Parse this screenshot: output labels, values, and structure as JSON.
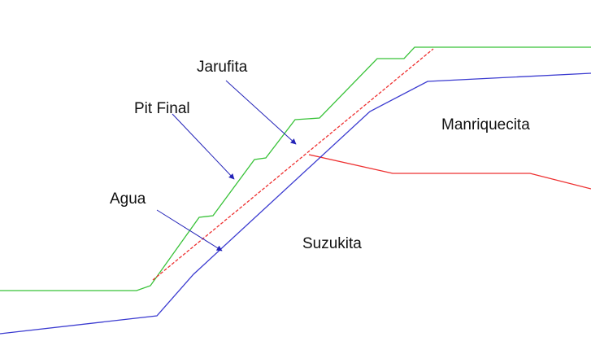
{
  "labels": {
    "jarufita": "Jarufita",
    "pit_final": "Pit Final",
    "agua": "Agua",
    "manriquecita": "Manriquecita",
    "suzukita": "Suzukita"
  },
  "colors": {
    "pit_final_line": "#38c238",
    "water_line": "#ee3030",
    "contact_line": "#3b3bd0",
    "arrow": "#2323b8",
    "text": "#111111"
  }
}
